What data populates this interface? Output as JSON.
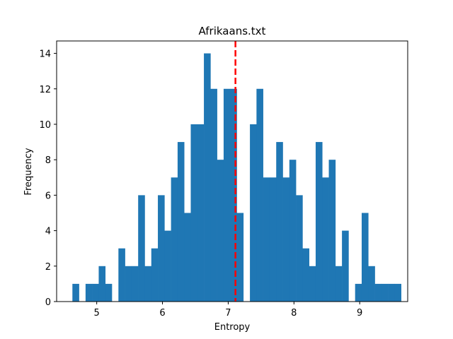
{
  "chart_data": {
    "type": "histogram",
    "title": "Afrikaans.txt",
    "xlabel": "Entropy",
    "ylabel": "Frequency",
    "xlim": [
      4.39,
      9.73
    ],
    "ylim": [
      0,
      14.7
    ],
    "x_ticks": [
      5,
      6,
      7,
      8,
      9
    ],
    "y_ticks": [
      0,
      2,
      4,
      6,
      8,
      10,
      12,
      14
    ],
    "bin_start": 4.63,
    "bin_width": 0.1,
    "counts": [
      1,
      0,
      1,
      1,
      2,
      1,
      0,
      3,
      2,
      2,
      6,
      2,
      3,
      6,
      4,
      7,
      9,
      5,
      10,
      10,
      14,
      12,
      8,
      12,
      12,
      5,
      0,
      10,
      12,
      7,
      7,
      9,
      7,
      8,
      6,
      3,
      2,
      9,
      7,
      8,
      2,
      4,
      0,
      1,
      5,
      2,
      1,
      1,
      1,
      1
    ],
    "bar_color": "#1f77b4",
    "vline": {
      "x": 7.11,
      "color": "#ff0000",
      "style": "dashed"
    },
    "grid": false,
    "legend": "none"
  }
}
